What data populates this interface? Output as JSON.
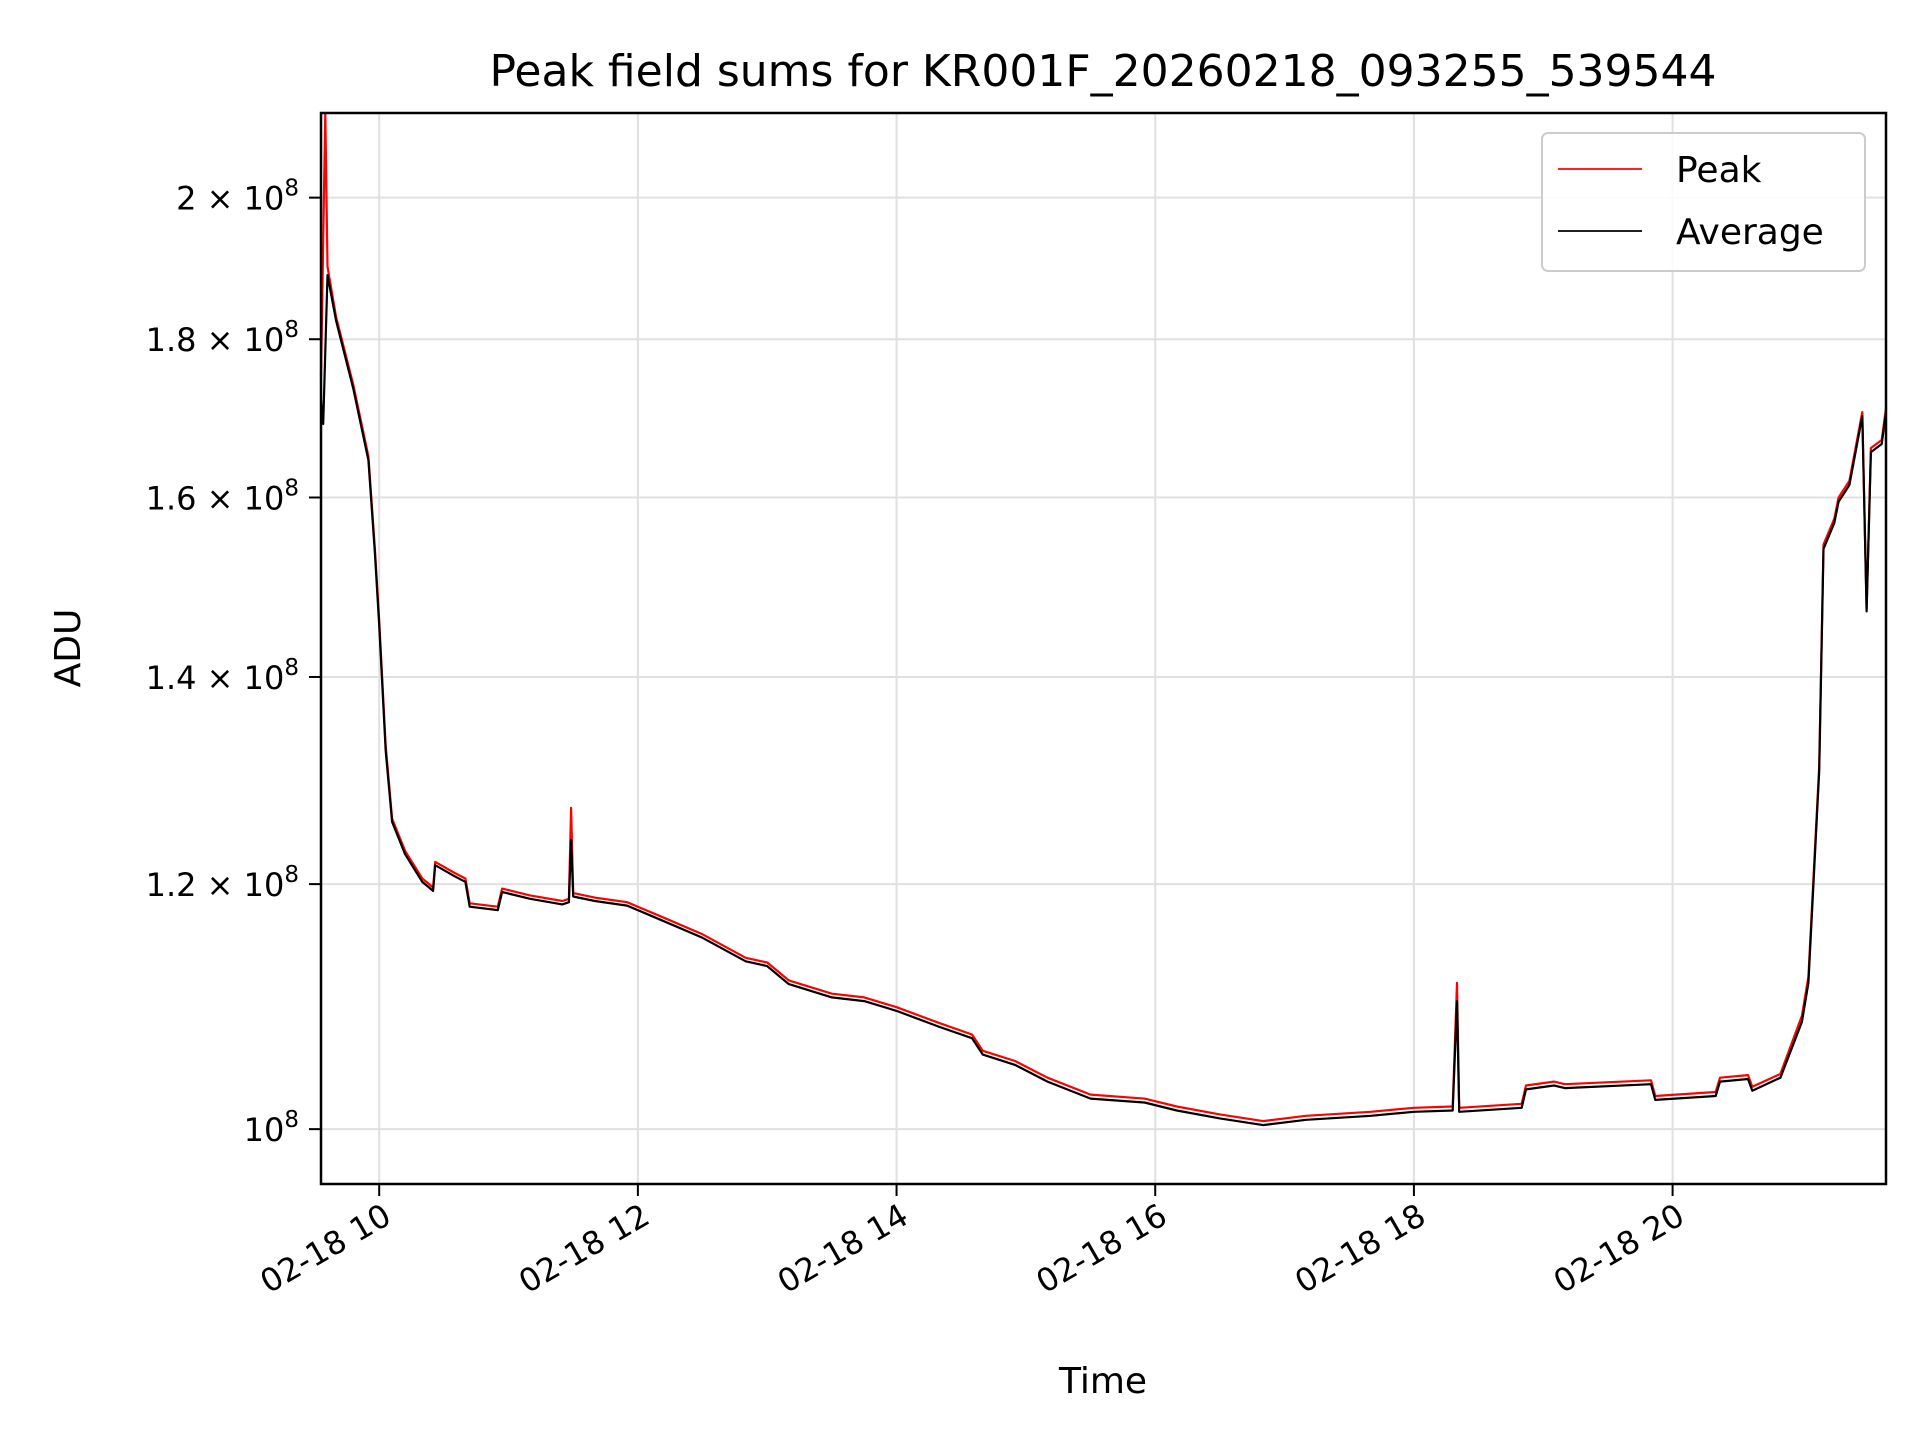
{
  "chart_data": {
    "type": "line",
    "title": "Peak field sums for KR001F_20260218_093255_539544",
    "xlabel": "Time",
    "ylabel": "ADU",
    "y_scale": "log",
    "ylim": [
      96000000,
      213000000
    ],
    "xlim": [
      "02-18 09:33",
      "02-18 21:39"
    ],
    "grid": true,
    "legend_position": "top-right",
    "x_tick_labels": [
      "02-18 10",
      "02-18 12",
      "02-18 14",
      "02-18 16",
      "02-18 18",
      "02-18 20"
    ],
    "x_tick_times": [
      "02-18 10:00",
      "02-18 12:00",
      "02-18 14:00",
      "02-18 16:00",
      "02-18 18:00",
      "02-18 20:00"
    ],
    "y_ticks": [
      {
        "value": 200000000,
        "mantissa": "2",
        "exp": "8"
      },
      {
        "value": 180000000,
        "mantissa": "1.8",
        "exp": "8"
      },
      {
        "value": 160000000,
        "mantissa": "1.6",
        "exp": "8"
      },
      {
        "value": 140000000,
        "mantissa": "1.4",
        "exp": "8"
      },
      {
        "value": 120000000,
        "mantissa": "1.2",
        "exp": "8"
      },
      {
        "value": 100000000,
        "mantissa": "10",
        "exp": "8",
        "power_only": true
      }
    ],
    "series": [
      {
        "name": "Peak",
        "color": "#ff0000",
        "points": [
          [
            "02-18 09:33",
            175000000
          ],
          [
            "02-18 09:35",
            213000000
          ],
          [
            "02-18 09:36",
            190000000
          ],
          [
            "02-18 09:40",
            183000000
          ],
          [
            "02-18 09:48",
            174000000
          ],
          [
            "02-18 09:55",
            165000000
          ],
          [
            "02-18 09:58",
            154000000
          ],
          [
            "02-18 10:00",
            146000000
          ],
          [
            "02-18 10:03",
            133000000
          ],
          [
            "02-18 10:06",
            126000000
          ],
          [
            "02-18 10:12",
            123000000
          ],
          [
            "02-18 10:20",
            120500000
          ],
          [
            "02-18 10:25",
            119700000
          ],
          [
            "02-18 10:26",
            122000000
          ],
          [
            "02-18 10:35",
            121000000
          ],
          [
            "02-18 10:40",
            120500000
          ],
          [
            "02-18 10:42",
            118300000
          ],
          [
            "02-18 10:55",
            118000000
          ],
          [
            "02-18 10:57",
            119600000
          ],
          [
            "02-18 11:10",
            119000000
          ],
          [
            "02-18 11:25",
            118500000
          ],
          [
            "02-18 11:28",
            118700000
          ],
          [
            "02-18 11:29",
            127000000
          ],
          [
            "02-18 11:30",
            119200000
          ],
          [
            "02-18 11:40",
            118800000
          ],
          [
            "02-18 11:55",
            118400000
          ],
          [
            "02-18 12:10",
            117200000
          ],
          [
            "02-18 12:30",
            115600000
          ],
          [
            "02-18 12:50",
            113600000
          ],
          [
            "02-18 13:00",
            113200000
          ],
          [
            "02-18 13:10",
            111700000
          ],
          [
            "02-18 13:30",
            110600000
          ],
          [
            "02-18 13:45",
            110300000
          ],
          [
            "02-18 14:00",
            109500000
          ],
          [
            "02-18 14:20",
            108200000
          ],
          [
            "02-18 14:35",
            107300000
          ],
          [
            "02-18 14:40",
            106000000
          ],
          [
            "02-18 14:55",
            105200000
          ],
          [
            "02-18 15:10",
            103900000
          ],
          [
            "02-18 15:30",
            102600000
          ],
          [
            "02-18 15:55",
            102300000
          ],
          [
            "02-18 16:10",
            101700000
          ],
          [
            "02-18 16:30",
            101100000
          ],
          [
            "02-18 16:50",
            100600000
          ],
          [
            "02-18 17:10",
            101000000
          ],
          [
            "02-18 17:40",
            101300000
          ],
          [
            "02-18 18:00",
            101600000
          ],
          [
            "02-18 18:18",
            101700000
          ],
          [
            "02-18 18:20",
            111500000
          ],
          [
            "02-18 18:21",
            101600000
          ],
          [
            "02-18 18:50",
            101900000
          ],
          [
            "02-18 18:52",
            103300000
          ],
          [
            "02-18 19:05",
            103600000
          ],
          [
            "02-18 19:10",
            103400000
          ],
          [
            "02-18 19:50",
            103700000
          ],
          [
            "02-18 19:52",
            102500000
          ],
          [
            "02-18 20:20",
            102800000
          ],
          [
            "02-18 20:22",
            103900000
          ],
          [
            "02-18 20:35",
            104100000
          ],
          [
            "02-18 20:37",
            103200000
          ],
          [
            "02-18 20:50",
            104200000
          ],
          [
            "02-18 21:00",
            108800000
          ],
          [
            "02-18 21:03",
            112000000
          ],
          [
            "02-18 21:08",
            131000000
          ],
          [
            "02-18 21:10",
            154500000
          ],
          [
            "02-18 21:15",
            157500000
          ],
          [
            "02-18 21:17",
            160000000
          ],
          [
            "02-18 21:22",
            162000000
          ],
          [
            "02-18 21:28",
            170500000
          ],
          [
            "02-18 21:30",
            147300000
          ],
          [
            "02-18 21:32",
            166000000
          ],
          [
            "02-18 21:37",
            167000000
          ],
          [
            "02-18 21:39",
            171000000
          ]
        ]
      },
      {
        "name": "Average",
        "color": "#000000",
        "points": [
          [
            "02-18 09:33",
            172000000
          ],
          [
            "02-18 09:34",
            169000000
          ],
          [
            "02-18 09:36",
            188800000
          ],
          [
            "02-18 09:40",
            182500000
          ],
          [
            "02-18 09:48",
            173500000
          ],
          [
            "02-18 09:55",
            164500000
          ],
          [
            "02-18 09:58",
            153500000
          ],
          [
            "02-18 10:00",
            145500000
          ],
          [
            "02-18 10:03",
            132500000
          ],
          [
            "02-18 10:06",
            125700000
          ],
          [
            "02-18 10:12",
            122700000
          ],
          [
            "02-18 10:20",
            120200000
          ],
          [
            "02-18 10:25",
            119400000
          ],
          [
            "02-18 10:26",
            121700000
          ],
          [
            "02-18 10:35",
            120700000
          ],
          [
            "02-18 10:40",
            120200000
          ],
          [
            "02-18 10:42",
            118000000
          ],
          [
            "02-18 10:55",
            117700000
          ],
          [
            "02-18 10:57",
            119300000
          ],
          [
            "02-18 11:10",
            118700000
          ],
          [
            "02-18 11:25",
            118200000
          ],
          [
            "02-18 11:28",
            118400000
          ],
          [
            "02-18 11:29",
            124000000
          ],
          [
            "02-18 11:30",
            118900000
          ],
          [
            "02-18 11:40",
            118500000
          ],
          [
            "02-18 11:55",
            118100000
          ],
          [
            "02-18 12:10",
            116900000
          ],
          [
            "02-18 12:30",
            115300000
          ],
          [
            "02-18 12:50",
            113300000
          ],
          [
            "02-18 13:00",
            112900000
          ],
          [
            "02-18 13:10",
            111400000
          ],
          [
            "02-18 13:30",
            110300000
          ],
          [
            "02-18 13:45",
            110000000
          ],
          [
            "02-18 14:00",
            109200000
          ],
          [
            "02-18 14:20",
            107900000
          ],
          [
            "02-18 14:35",
            107000000
          ],
          [
            "02-18 14:40",
            105700000
          ],
          [
            "02-18 14:55",
            104900000
          ],
          [
            "02-18 15:10",
            103600000
          ],
          [
            "02-18 15:30",
            102300000
          ],
          [
            "02-18 15:55",
            102000000
          ],
          [
            "02-18 16:10",
            101400000
          ],
          [
            "02-18 16:30",
            100800000
          ],
          [
            "02-18 16:50",
            100300000
          ],
          [
            "02-18 17:10",
            100700000
          ],
          [
            "02-18 17:40",
            101000000
          ],
          [
            "02-18 18:00",
            101300000
          ],
          [
            "02-18 18:18",
            101400000
          ],
          [
            "02-18 18:20",
            110000000
          ],
          [
            "02-18 18:21",
            101300000
          ],
          [
            "02-18 18:50",
            101600000
          ],
          [
            "02-18 18:52",
            103000000
          ],
          [
            "02-18 19:05",
            103300000
          ],
          [
            "02-18 19:10",
            103100000
          ],
          [
            "02-18 19:50",
            103400000
          ],
          [
            "02-18 19:52",
            102200000
          ],
          [
            "02-18 20:20",
            102500000
          ],
          [
            "02-18 20:22",
            103600000
          ],
          [
            "02-18 20:35",
            103800000
          ],
          [
            "02-18 20:37",
            102900000
          ],
          [
            "02-18 20:50",
            103900000
          ],
          [
            "02-18 21:00",
            108300000
          ],
          [
            "02-18 21:03",
            111500000
          ],
          [
            "02-18 21:08",
            130500000
          ],
          [
            "02-18 21:10",
            154000000
          ],
          [
            "02-18 21:15",
            157000000
          ],
          [
            "02-18 21:17",
            159500000
          ],
          [
            "02-18 21:22",
            161500000
          ],
          [
            "02-18 21:28",
            170000000
          ],
          [
            "02-18 21:30",
            147000000
          ],
          [
            "02-18 21:32",
            165500000
          ],
          [
            "02-18 21:37",
            166500000
          ],
          [
            "02-18 21:39",
            170500000
          ]
        ]
      }
    ]
  }
}
